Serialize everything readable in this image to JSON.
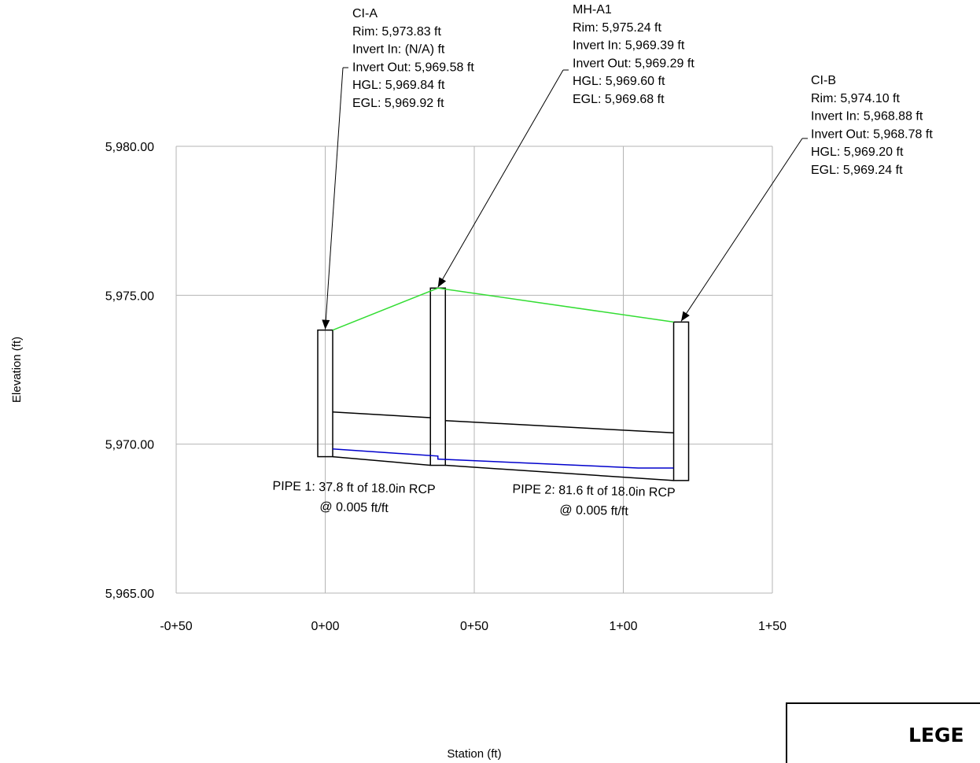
{
  "chart_data": {
    "type": "profile",
    "xlabel": "Station (ft)",
    "ylabel": "Elevation (ft)",
    "xlim": [
      -50,
      150
    ],
    "ylim": [
      5965.0,
      5980.0
    ],
    "x_ticks": [
      {
        "value": -50,
        "label": "-0+50"
      },
      {
        "value": 0,
        "label": "0+00"
      },
      {
        "value": 50,
        "label": "0+50"
      },
      {
        "value": 100,
        "label": "1+00"
      },
      {
        "value": 150,
        "label": "1+50"
      }
    ],
    "y_ticks": [
      {
        "value": 5965.0,
        "label": "5,965.00"
      },
      {
        "value": 5970.0,
        "label": "5,970.00"
      },
      {
        "value": 5975.0,
        "label": "5,975.00"
      },
      {
        "value": 5980.0,
        "label": "5,980.00"
      }
    ],
    "grid": true,
    "structures": [
      {
        "name": "CI-A",
        "station": 0.0,
        "rim": 5973.83,
        "bottom": 5969.58,
        "lines": [
          "CI-A",
          "Rim: 5,973.83 ft",
          "Invert In: (N/A) ft",
          "Invert Out: 5,969.58 ft",
          "HGL: 5,969.84 ft",
          "EGL: 5,969.92 ft"
        ]
      },
      {
        "name": "MH-A1",
        "station": 37.8,
        "rim": 5975.24,
        "bottom": 5969.29,
        "lines": [
          "MH-A1",
          "Rim: 5,975.24 ft",
          "Invert In: 5,969.39 ft",
          "Invert Out: 5,969.29 ft",
          "HGL: 5,969.60 ft",
          "EGL: 5,969.68 ft"
        ]
      },
      {
        "name": "CI-B",
        "station": 119.4,
        "rim": 5974.1,
        "bottom": 5968.78,
        "lines": [
          "CI-B",
          "Rim: 5,974.10 ft",
          "Invert In: 5,968.88 ft",
          "Invert Out: 5,968.78 ft",
          "HGL: 5,969.20 ft",
          "EGL: 5,969.24 ft"
        ]
      }
    ],
    "ground_line": {
      "color": "#33dd33",
      "points": [
        [
          0.0,
          5973.83
        ],
        [
          37.8,
          5975.24
        ],
        [
          119.4,
          5974.1
        ]
      ]
    },
    "hgl_line": {
      "color": "#0000cc",
      "points": [
        [
          0.0,
          5969.84
        ],
        [
          37.8,
          5969.6
        ],
        [
          37.8,
          5969.5
        ],
        [
          105,
          5969.2
        ],
        [
          119.4,
          5969.2
        ]
      ]
    },
    "pipes": [
      {
        "name": "PIPE 1",
        "from_station": 0.0,
        "to_station": 37.8,
        "invert_start": 5969.58,
        "invert_end": 5969.39,
        "diameter_ft": 1.5,
        "label_line1": "PIPE 1: 37.8 ft of 18.0in RCP",
        "label_line2": "@ 0.005 ft/ft"
      },
      {
        "name": "PIPE 2",
        "from_station": 37.8,
        "to_station": 119.4,
        "invert_start": 5969.29,
        "invert_end": 5968.88,
        "diameter_ft": 1.5,
        "label_line1": "PIPE 2: 81.6 ft of 18.0in RCP",
        "label_line2": "@ 0.005 ft/ft"
      }
    ]
  },
  "legend": {
    "title": "LEGE"
  }
}
